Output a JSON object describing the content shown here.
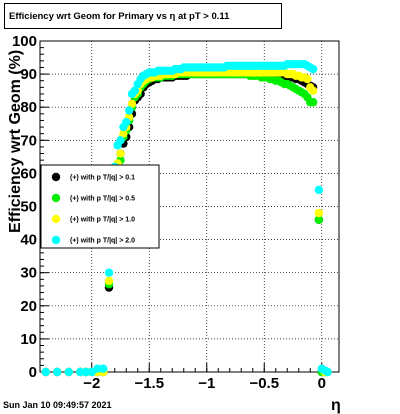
{
  "title": "Efficiency wrt Geom for Primary vs   η at pT > 0.11",
  "footer": "Sun Jan 10 09:49:57 2021",
  "chart_data": {
    "type": "scatter",
    "xlabel": "η",
    "ylabel": "Efficiency wrt Geom (%)",
    "xlim": [
      -2.45,
      0.15
    ],
    "ylim": [
      0,
      100
    ],
    "grid": true,
    "legend_position": "left",
    "x_ticks": [
      -2,
      -1.5,
      -1,
      -0.5,
      0
    ],
    "x_tick_labels": [
      "−2",
      "−1.5",
      "−1",
      "−0.5",
      "0"
    ],
    "y_ticks": [
      0,
      10,
      20,
      30,
      40,
      50,
      60,
      70,
      80,
      90,
      100
    ],
    "y_tick_labels": [
      "0",
      "10",
      "20",
      "30",
      "40",
      "50",
      "60",
      "70",
      "80",
      "90",
      "100"
    ],
    "x": [
      -2.4,
      -2.3,
      -2.2,
      -2.1,
      -2.05,
      -2.0,
      -1.95,
      -1.9,
      -1.85,
      -1.8,
      -1.775,
      -1.75,
      -1.725,
      -1.7,
      -1.675,
      -1.65,
      -1.625,
      -1.6,
      -1.575,
      -1.55,
      -1.525,
      -1.5,
      -1.475,
      -1.45,
      -1.425,
      -1.4,
      -1.375,
      -1.35,
      -1.325,
      -1.3,
      -1.275,
      -1.25,
      -1.225,
      -1.2,
      -1.175,
      -1.15,
      -1.125,
      -1.1,
      -1.075,
      -1.05,
      -1.025,
      -1.0,
      -0.975,
      -0.95,
      -0.925,
      -0.9,
      -0.875,
      -0.85,
      -0.825,
      -0.8,
      -0.775,
      -0.75,
      -0.725,
      -0.7,
      -0.675,
      -0.65,
      -0.625,
      -0.6,
      -0.575,
      -0.55,
      -0.525,
      -0.5,
      -0.475,
      -0.45,
      -0.425,
      -0.4,
      -0.375,
      -0.35,
      -0.325,
      -0.3,
      -0.275,
      -0.25,
      -0.225,
      -0.2,
      -0.175,
      -0.15,
      -0.125,
      -0.1,
      -0.075,
      -0.025,
      0.0,
      0.025,
      0.05
    ],
    "series": [
      {
        "name": "(+) with p T/|q| > 0.1",
        "color": "#000000",
        "y": [
          0,
          0,
          0,
          0,
          0,
          0,
          0,
          0,
          25.5,
          50.5,
          61,
          66,
          69,
          71,
          74,
          78,
          82,
          83,
          84,
          86,
          87,
          87.5,
          88,
          88.5,
          88.5,
          89,
          89,
          89,
          89,
          89,
          89.5,
          89.5,
          89.5,
          89.5,
          89.5,
          90,
          90,
          90,
          90,
          90,
          90,
          90,
          90,
          90,
          90,
          90,
          90,
          90,
          90,
          90,
          90,
          90,
          90,
          90,
          90,
          90,
          90,
          90,
          90,
          90,
          90,
          90,
          90,
          90,
          90,
          89.5,
          89.5,
          89.5,
          89,
          89,
          89,
          89,
          88.5,
          88.5,
          88,
          87.5,
          87,
          86.5,
          86,
          46,
          0,
          0,
          0
        ]
      },
      {
        "name": "(+) with p T/|q| > 0.5",
        "color": "#00ee00",
        "y": [
          0,
          0,
          0,
          0,
          0,
          0,
          0,
          0,
          26.5,
          52,
          62,
          64,
          71,
          73,
          76,
          80,
          83,
          84,
          86,
          87,
          88,
          88.5,
          89,
          89,
          89,
          89,
          89.5,
          89.5,
          89.5,
          89.5,
          90,
          90,
          90,
          90,
          90,
          90,
          90,
          90,
          90,
          90,
          90,
          90,
          90,
          90,
          90,
          90,
          90,
          90,
          90,
          90,
          90,
          90,
          90,
          90,
          90,
          90,
          89.5,
          89.5,
          89.5,
          89.5,
          89,
          89,
          89,
          88.5,
          88.5,
          88,
          88,
          87.5,
          87,
          87,
          86.5,
          86,
          85.5,
          85,
          84.5,
          84,
          83,
          81.5,
          81.5,
          46,
          0,
          0,
          0
        ]
      },
      {
        "name": "(+) with p T/|q| > 1.0",
        "color": "#ffff00",
        "y": [
          0,
          0,
          0,
          0,
          0,
          0,
          0,
          0,
          27.5,
          53,
          63,
          66,
          72,
          74,
          77,
          81,
          84,
          85,
          87,
          88,
          88.5,
          89,
          89,
          89.5,
          89.5,
          89.5,
          90,
          90,
          90,
          90,
          90,
          90.5,
          90.5,
          90.5,
          90.5,
          90.5,
          90.5,
          90.5,
          90.5,
          90.5,
          90.5,
          90.5,
          90.5,
          90.5,
          90.5,
          90.5,
          90.5,
          90.5,
          90.5,
          90.5,
          90.5,
          90.5,
          90.5,
          90.5,
          90.5,
          90.5,
          90.5,
          90.5,
          90.5,
          90.5,
          90.5,
          90.5,
          90.5,
          90.5,
          90.5,
          90.5,
          90.5,
          90.5,
          90.5,
          90,
          90,
          90,
          89.5,
          89.5,
          89,
          89,
          88.5,
          86,
          85,
          48,
          1,
          0,
          0
        ]
      },
      {
        "name": "(+) with p T/|q| > 2.0",
        "color": "#00ffff",
        "y": [
          0,
          0,
          0,
          0,
          0,
          0,
          1,
          1,
          30,
          62,
          68.5,
          70,
          74,
          75.5,
          79,
          84,
          85,
          87,
          88.5,
          89.5,
          90,
          90.5,
          90.5,
          90.5,
          91,
          91,
          91,
          91,
          91,
          91,
          91.5,
          91.5,
          91.5,
          92,
          92,
          92,
          92,
          92,
          92,
          92,
          92,
          92,
          92,
          92,
          92,
          92,
          92,
          92,
          92.5,
          92.5,
          92.5,
          92.5,
          92.5,
          92.5,
          92.5,
          92.5,
          92.5,
          92.5,
          92.5,
          92.5,
          92.5,
          92.5,
          92.5,
          92.5,
          92.5,
          92.5,
          92.5,
          92.5,
          92.5,
          93,
          93,
          93,
          93,
          93,
          93,
          93,
          92.5,
          92,
          91.5,
          55,
          1,
          0.5,
          0
        ]
      }
    ]
  }
}
